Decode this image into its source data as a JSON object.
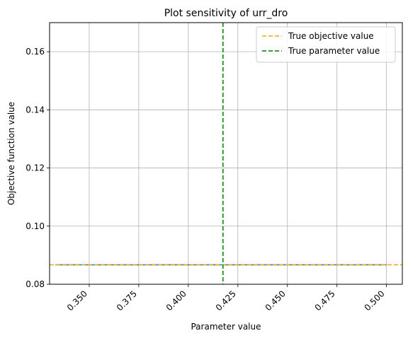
{
  "chart_data": {
    "type": "line",
    "title": "Plot sensitivity of urr_dro",
    "xlabel": "Parameter value",
    "ylabel": "Objective function value",
    "xlim": [
      0.33,
      0.508
    ],
    "ylim": [
      0.08,
      0.17
    ],
    "xticks": [
      0.35,
      0.375,
      0.4,
      0.425,
      0.45,
      0.475,
      0.5
    ],
    "xtick_labels": [
      "0.350",
      "0.375",
      "0.400",
      "0.425",
      "0.450",
      "0.475",
      "0.500"
    ],
    "yticks": [
      0.08,
      0.1,
      0.12,
      0.14,
      0.16
    ],
    "ytick_labels": [
      "0.08",
      "0.10",
      "0.12",
      "0.14",
      "0.16"
    ],
    "grid": true,
    "legend_position": "upper right",
    "series": [
      {
        "name": "",
        "style": "solid",
        "color": "#1f77b4",
        "x": [
          0.333,
          0.5
        ],
        "y": [
          0.0867,
          0.0867
        ]
      }
    ],
    "reference_lines": [
      {
        "name": "True objective value",
        "orientation": "horizontal",
        "value": 0.0867,
        "color": "#ffa500",
        "style": "dashed"
      },
      {
        "name": "True parameter value",
        "orientation": "vertical",
        "value": 0.4175,
        "color": "#008000",
        "style": "dashed"
      }
    ]
  }
}
